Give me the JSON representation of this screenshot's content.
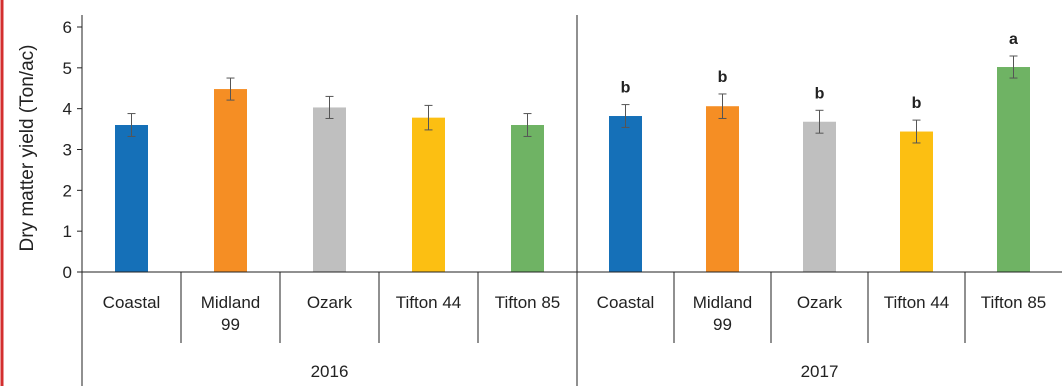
{
  "chart_data": {
    "type": "bar",
    "ylabel": "Dry matter yield (Ton/ac)",
    "ylim": [
      0,
      6
    ],
    "yticks": [
      "0",
      "1",
      "2",
      "3",
      "4",
      "5",
      "6"
    ],
    "colors": {
      "Coastal": "#1570b8",
      "Midland 99": "#f58e24",
      "Ozark": "#bfbfbf",
      "Tifton 44": "#fcbf12",
      "Tifton 85": "#6fb364"
    },
    "groups": [
      {
        "year": "2016",
        "bars": [
          {
            "category": [
              "Coastal"
            ],
            "value": 3.6,
            "error": 0.28,
            "sig": ""
          },
          {
            "category": [
              "Midland",
              "99"
            ],
            "value": 4.48,
            "error": 0.27,
            "sig": ""
          },
          {
            "category": [
              "Ozark"
            ],
            "value": 4.03,
            "error": 0.27,
            "sig": ""
          },
          {
            "category": [
              "Tifton 44"
            ],
            "value": 3.78,
            "error": 0.3,
            "sig": ""
          },
          {
            "category": [
              "Tifton 85"
            ],
            "value": 3.6,
            "error": 0.28,
            "sig": ""
          }
        ]
      },
      {
        "year": "2017",
        "bars": [
          {
            "category": [
              "Coastal"
            ],
            "value": 3.82,
            "error": 0.28,
            "sig": "b"
          },
          {
            "category": [
              "Midland",
              "99"
            ],
            "value": 4.06,
            "error": 0.3,
            "sig": "b"
          },
          {
            "category": [
              "Ozark"
            ],
            "value": 3.68,
            "error": 0.28,
            "sig": "b"
          },
          {
            "category": [
              "Tifton 44"
            ],
            "value": 3.44,
            "error": 0.28,
            "sig": "b"
          },
          {
            "category": [
              "Tifton 85"
            ],
            "value": 5.02,
            "error": 0.27,
            "sig": "a"
          }
        ]
      }
    ]
  }
}
